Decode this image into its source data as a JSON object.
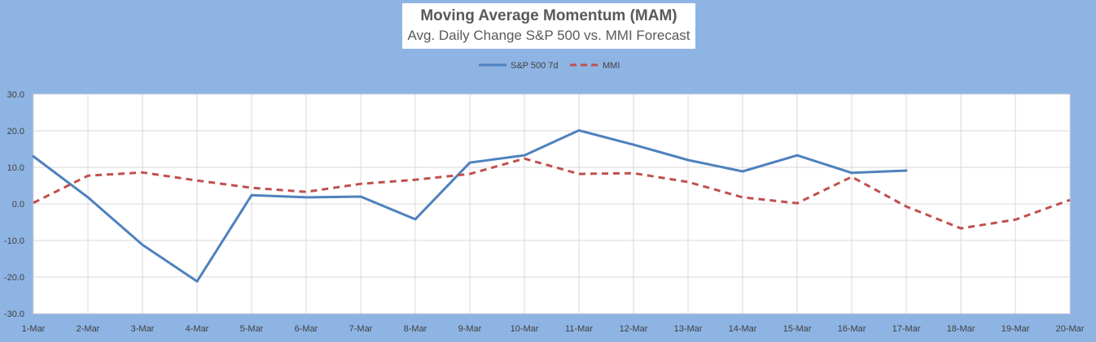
{
  "chart_data": {
    "type": "line",
    "title": "Moving Average Momentum (MAM)",
    "subtitle": "Avg. Daily Change S&P 500 vs. MMI Forecast",
    "categories": [
      "1-Mar",
      "2-Mar",
      "3-Mar",
      "4-Mar",
      "5-Mar",
      "6-Mar",
      "7-Mar",
      "8-Mar",
      "9-Mar",
      "10-Mar",
      "11-Mar",
      "12-Mar",
      "13-Mar",
      "14-Mar",
      "15-Mar",
      "16-Mar",
      "17-Mar",
      "18-Mar",
      "19-Mar",
      "20-Mar"
    ],
    "ylim": [
      -30,
      30
    ],
    "yticks": [
      "30.0",
      "20.0",
      "10.0",
      "0.0",
      "-10.0",
      "-20.0",
      "-30.0"
    ],
    "grid": true,
    "legend_position": "top-center",
    "series": [
      {
        "name": "S&P 500 7d",
        "color": "#4F81BD",
        "style": "solid",
        "values": [
          13.0,
          1.8,
          -11.2,
          -21.2,
          2.4,
          1.8,
          2.0,
          -4.2,
          11.3,
          13.3,
          20.1,
          16.2,
          12.0,
          8.9,
          13.3,
          8.5,
          9.1,
          null,
          null,
          null
        ]
      },
      {
        "name": "MMI",
        "color": "#C0504D",
        "style": "dashed",
        "values": [
          0.3,
          7.7,
          8.6,
          6.4,
          4.4,
          3.3,
          5.5,
          6.6,
          8.2,
          12.4,
          8.2,
          8.4,
          6.0,
          1.8,
          0.2,
          7.4,
          -0.7,
          -6.7,
          -4.3,
          1.1
        ]
      }
    ]
  }
}
